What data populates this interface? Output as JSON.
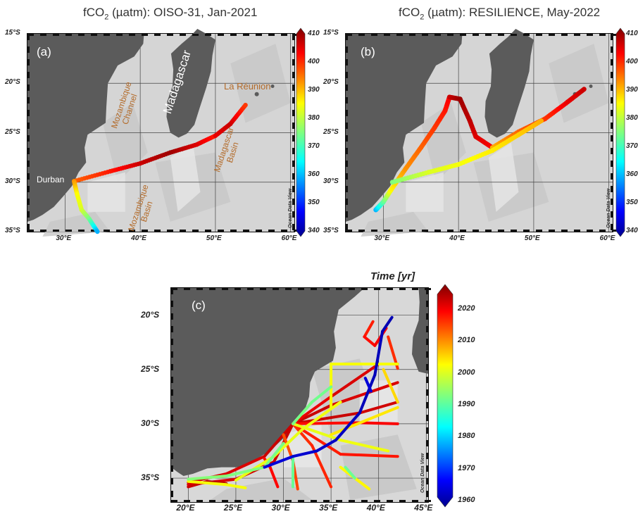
{
  "panel_a": {
    "title_prefix": "fCO",
    "title_sub": "2",
    "title_rest": " (µatm):  OISO-31, Jan-2021",
    "label": "(a)",
    "lat_ticks": [
      "15°S",
      "20°S",
      "25°S",
      "30°S",
      "35°S"
    ],
    "lon_ticks": [
      "30°E",
      "40°E",
      "50°E",
      "60°E"
    ],
    "place_labels": {
      "madagascar": "Madagascar",
      "la_reunion": "La Réunion",
      "mozambique_channel_1": "Mozambique",
      "mozambique_channel_2": "Channel",
      "madagascar_basin_1": "Madagascar",
      "madagascar_basin_2": "Basin",
      "mozambique_basin_1": "Mozambique",
      "mozambique_basin_2": "Basin",
      "durban": "Durban"
    },
    "colorbar_ticks": [
      "410",
      "400",
      "390",
      "380",
      "370",
      "360",
      "350",
      "340"
    ],
    "watermark": "Ocean Data View"
  },
  "panel_b": {
    "title_prefix": "fCO",
    "title_sub": "2",
    "title_rest": " (µatm):  RESILIENCE, May-2022",
    "label": "(b)",
    "lat_ticks": [
      "15°S",
      "20°S",
      "25°S",
      "30°S",
      "35°S"
    ],
    "lon_ticks": [
      "30°E",
      "40°E",
      "50°E",
      "60°E"
    ],
    "colorbar_ticks": [
      "410",
      "400",
      "390",
      "380",
      "370",
      "360",
      "350",
      "340"
    ],
    "watermark": "Ocean Data View"
  },
  "panel_c": {
    "label": "(c)",
    "colorbar_title": "Time [yr]",
    "lat_ticks": [
      "20°S",
      "25°S",
      "30°S",
      "35°S"
    ],
    "lon_ticks": [
      "20°E",
      "25°E",
      "30°E",
      "35°E",
      "40°E",
      "45°E"
    ],
    "colorbar_ticks": [
      "2020",
      "2010",
      "2000",
      "1990",
      "1980",
      "1970",
      "1960"
    ],
    "watermark": "Ocean Data View"
  },
  "colors": {
    "land": "#5b5b5b",
    "sea_shallow": "#dcdcdc",
    "sea_deep": "#b8b8b8",
    "graticule": "#444444",
    "label_brown": "#b36b2a"
  },
  "fco2_range": [
    340,
    410
  ],
  "year_range": [
    1960,
    2025
  ],
  "tracks": {
    "a": [
      {
        "points": [
          [
            31.2,
            -29.9
          ],
          [
            36,
            -28.9
          ],
          [
            40,
            -28.1
          ],
          [
            44,
            -27
          ],
          [
            47.5,
            -26.2
          ],
          [
            50,
            -25.3
          ]
        ],
        "values": [
          395,
          400,
          405,
          408,
          404,
          400
        ]
      },
      {
        "points": [
          [
            50,
            -25.3
          ],
          [
            52,
            -24.1
          ],
          [
            54,
            -22.2
          ]
        ],
        "values": [
          403,
          405,
          398
        ]
      },
      {
        "points": [
          [
            31.2,
            -29.9
          ],
          [
            31.6,
            -31.2
          ],
          [
            32.2,
            -32.8
          ],
          [
            33.2,
            -33.7
          ],
          [
            34.3,
            -35
          ]
        ],
        "values": [
          392,
          385,
          382,
          375,
          360
        ]
      }
    ],
    "b": [
      {
        "points": [
          [
            29,
            -32.8
          ],
          [
            30,
            -32
          ],
          [
            31,
            -30.8
          ],
          [
            33,
            -28.6
          ],
          [
            35,
            -26.5
          ],
          [
            36.8,
            -24.5
          ],
          [
            38.2,
            -22.8
          ],
          [
            38.8,
            -21.4
          ]
        ],
        "values": [
          360,
          372,
          385,
          392,
          395,
          398,
          400,
          402
        ]
      },
      {
        "points": [
          [
            38.8,
            -21.4
          ],
          [
            40.2,
            -21.6
          ],
          [
            41.5,
            -23.8
          ],
          [
            42.3,
            -25.4
          ],
          [
            44.5,
            -26.5
          ]
        ],
        "values": [
          405,
          408,
          406,
          404,
          402
        ]
      },
      {
        "points": [
          [
            44.5,
            -26.5
          ],
          [
            48,
            -24.9
          ],
          [
            51.5,
            -23.6
          ],
          [
            54.5,
            -21.9
          ],
          [
            56.7,
            -20.6
          ]
        ],
        "values": [
          390,
          395,
          398,
          403,
          405
        ]
      },
      {
        "points": [
          [
            31.2,
            -30
          ],
          [
            36,
            -29
          ],
          [
            40,
            -28.2
          ],
          [
            44.5,
            -26.8
          ],
          [
            48,
            -25.2
          ],
          [
            51,
            -23.8
          ]
        ],
        "values": [
          375,
          382,
          384,
          386,
          388,
          390
        ]
      }
    ],
    "c": [
      {
        "points": [
          [
            20,
            -35.6
          ],
          [
            25,
            -35.1
          ],
          [
            29,
            -33.5
          ],
          [
            31,
            -30
          ],
          [
            35,
            -28.3
          ],
          [
            42,
            -26.2
          ]
        ],
        "values": [
          2019,
          2020,
          2020,
          2021,
          2020,
          2019
        ]
      },
      {
        "points": [
          [
            20,
            -35.4
          ],
          [
            24,
            -34.6
          ],
          [
            28,
            -33
          ],
          [
            31,
            -30
          ],
          [
            38,
            -29
          ],
          [
            42,
            -28
          ]
        ],
        "values": [
          2020,
          2019,
          2020,
          2021,
          2020,
          2020
        ]
      },
      {
        "points": [
          [
            31,
            -30
          ],
          [
            35,
            -27.5
          ],
          [
            40,
            -24.5
          ],
          [
            42,
            -24.5
          ]
        ],
        "values": [
          2018,
          2019,
          2020,
          2020
        ]
      },
      {
        "points": [
          [
            31,
            -30
          ],
          [
            38,
            -29.9
          ],
          [
            42,
            -30
          ]
        ],
        "values": [
          2016,
          2017,
          2018
        ]
      },
      {
        "points": [
          [
            31,
            -30
          ],
          [
            36,
            -32.8
          ],
          [
            42,
            -33
          ]
        ],
        "values": [
          2015,
          2016,
          2016
        ]
      },
      {
        "points": [
          [
            31,
            -30
          ],
          [
            33,
            -32
          ],
          [
            35,
            -35.8
          ]
        ],
        "values": [
          2014,
          2015,
          2015
        ]
      },
      {
        "points": [
          [
            30,
            -31
          ],
          [
            31,
            -33.4
          ],
          [
            31.5,
            -36
          ]
        ],
        "values": [
          2012,
          2013,
          2013
        ]
      },
      {
        "points": [
          [
            28,
            -33.2
          ],
          [
            28.6,
            -34
          ],
          [
            29.4,
            -35.8
          ]
        ],
        "values": [
          2016,
          2017,
          2017
        ]
      },
      {
        "points": [
          [
            20,
            -35.8
          ],
          [
            22,
            -35.3
          ],
          [
            24,
            -35.5
          ]
        ],
        "values": [
          2020,
          2021,
          2022
        ]
      },
      {
        "points": [
          [
            39.4,
            -20.6
          ],
          [
            38.5,
            -22
          ],
          [
            39.6,
            -22.8
          ],
          [
            40.8,
            -21.2
          ]
        ],
        "values": [
          2015,
          2016,
          2017,
          2018
        ]
      },
      {
        "points": [
          [
            41,
            -22
          ],
          [
            42,
            -24.9
          ]
        ],
        "values": [
          2014,
          2015
        ]
      },
      {
        "points": [
          [
            35,
            -24.5
          ],
          [
            42,
            -24.5
          ]
        ],
        "values": [
          2001,
          2001
        ]
      },
      {
        "points": [
          [
            35,
            -24.5
          ],
          [
            35,
            -28.5
          ]
        ],
        "values": [
          2001,
          2001
        ]
      },
      {
        "points": [
          [
            25,
            -35.2
          ],
          [
            29,
            -33
          ],
          [
            32,
            -30.5
          ],
          [
            36,
            -28
          ]
        ],
        "values": [
          2000,
          2000,
          2000,
          2001
        ]
      },
      {
        "points": [
          [
            31,
            -30
          ],
          [
            36,
            -31.5
          ],
          [
            41,
            -32.5
          ]
        ],
        "values": [
          2000,
          2000,
          2001
        ]
      },
      {
        "points": [
          [
            36,
            -34
          ],
          [
            39,
            -36
          ]
        ],
        "values": [
          2002,
          2002
        ]
      },
      {
        "points": [
          [
            35,
            -31
          ],
          [
            42,
            -28.5
          ]
        ],
        "values": [
          2003,
          2003
        ]
      },
      {
        "points": [
          [
            40.5,
            -25
          ],
          [
            42,
            -28
          ]
        ],
        "values": [
          2004,
          2004
        ]
      },
      {
        "points": [
          [
            20,
            -35.3
          ],
          [
            24,
            -35.6
          ],
          [
            26,
            -35.9
          ]
        ],
        "values": [
          2001,
          2001,
          2001
        ]
      },
      {
        "points": [
          [
            20,
            -35.1
          ],
          [
            24,
            -34.8
          ],
          [
            28,
            -34
          ],
          [
            30,
            -31.8
          ]
        ],
        "values": [
          1993,
          1993,
          1992,
          1992
        ]
      },
      {
        "points": [
          [
            31,
            -30
          ],
          [
            33,
            -28
          ],
          [
            35,
            -26.6
          ]
        ],
        "values": [
          1992,
          1992,
          1991
        ]
      },
      {
        "points": [
          [
            31,
            -33
          ],
          [
            31,
            -35.8
          ]
        ],
        "values": [
          1991,
          1991
        ]
      },
      {
        "points": [
          [
            36.5,
            -34
          ],
          [
            37.5,
            -35
          ]
        ],
        "values": [
          1991,
          1991
        ]
      },
      {
        "points": [
          [
            28,
            -34
          ],
          [
            31,
            -33
          ],
          [
            33.5,
            -32.5
          ],
          [
            35.5,
            -31.5
          ]
        ],
        "values": [
          1965,
          1965,
          1964,
          1964
        ]
      },
      {
        "points": [
          [
            35.5,
            -31.5
          ],
          [
            38,
            -29
          ],
          [
            39.6,
            -25.5
          ],
          [
            40.4,
            -21.5
          ],
          [
            41.4,
            -20.2
          ]
        ],
        "values": [
          1964,
          1963,
          1963,
          1963,
          1962
        ]
      },
      {
        "points": [
          [
            38.6,
            -25.8
          ],
          [
            39.2,
            -27
          ]
        ],
        "values": [
          1965,
          1965
        ]
      }
    ]
  }
}
